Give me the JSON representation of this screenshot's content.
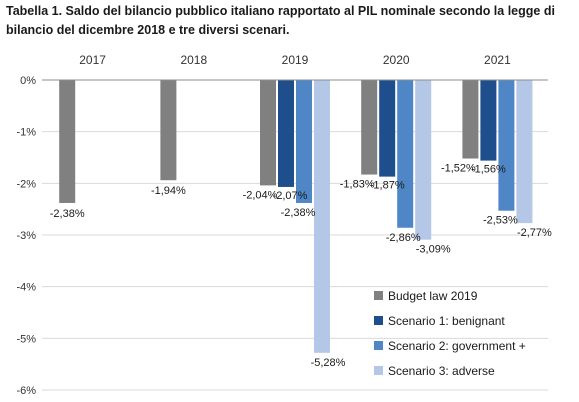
{
  "chart_data": {
    "type": "bar",
    "title": "Tabella 1. Saldo del bilancio pubblico italiano rapportato al PIL nominale secondo la legge di bilancio del dicembre 2018 e tre diversi scenari.",
    "categories": [
      "2017",
      "2018",
      "2019",
      "2020",
      "2021"
    ],
    "series": [
      {
        "name": "Budget law 2019",
        "color": "#808080",
        "values": [
          -2.38,
          -1.94,
          -2.04,
          -1.83,
          -1.52
        ],
        "labels": [
          "-2,38%",
          "-1,94%",
          "-2,04%",
          "-1,83%",
          "-1,52%"
        ]
      },
      {
        "name": "Scenario 1: benignant",
        "color": "#1f4e8c",
        "values": [
          null,
          null,
          -2.07,
          -1.87,
          -1.56
        ],
        "labels": [
          "",
          "",
          "-2,07%",
          "-1,87%",
          "-1,56%"
        ]
      },
      {
        "name": "Scenario 2: government +",
        "color": "#4f86c6",
        "values": [
          null,
          null,
          -2.38,
          -2.86,
          -2.53
        ],
        "labels": [
          "",
          "",
          "-2,38%",
          "-2,86%",
          "-2,53%"
        ]
      },
      {
        "name": "Scenario 3: adverse",
        "color": "#b4c7e7",
        "values": [
          null,
          null,
          -5.28,
          -3.09,
          -2.77
        ],
        "labels": [
          "",
          "",
          "-5,28%",
          "-3,09%",
          "-2,77%"
        ]
      }
    ],
    "y_ticks": [
      0,
      -1,
      -2,
      -3,
      -4,
      -5,
      -6
    ],
    "y_tick_labels": [
      "0%",
      "-1%",
      "-2%",
      "-3%",
      "-4%",
      "-5%",
      "-6%"
    ],
    "ylim": [
      -6,
      0
    ],
    "xlabel": "",
    "ylabel": "",
    "x_axis_position": "top",
    "grid": true,
    "legend_position": "bottom-right"
  }
}
